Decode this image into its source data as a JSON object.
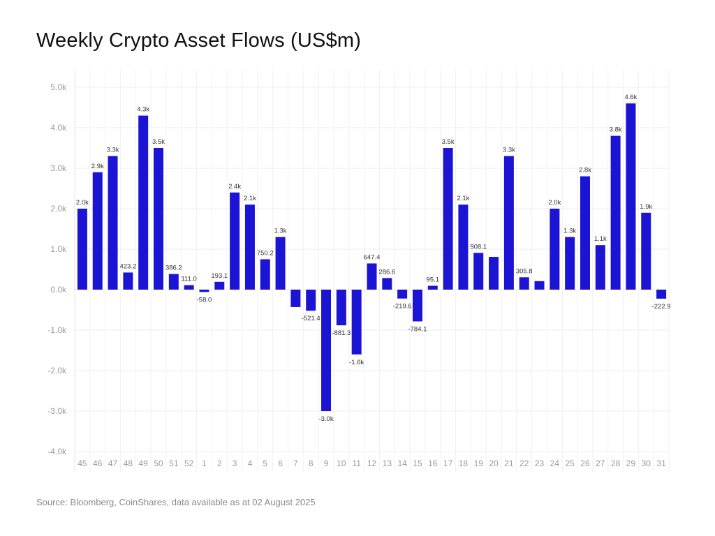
{
  "chart_data": {
    "type": "bar",
    "title": "Weekly Crypto Asset Flows (US$m)",
    "source": "Source: Bloomberg, CoinShares, data available as at 02 August 2025",
    "categories": [
      "45",
      "46",
      "47",
      "48",
      "49",
      "50",
      "51",
      "52",
      "1",
      "2",
      "3",
      "4",
      "5",
      "6",
      "7",
      "8",
      "9",
      "10",
      "11",
      "12",
      "13",
      "14",
      "15",
      "16",
      "17",
      "18",
      "19",
      "20",
      "21",
      "22",
      "23",
      "24",
      "25",
      "26",
      "27",
      "28",
      "29",
      "30",
      "31"
    ],
    "values": [
      2000,
      2900,
      3300,
      423.2,
      4300,
      3500,
      386.2,
      111.0,
      -58.0,
      193.1,
      2400,
      2100,
      750.2,
      1300,
      -430,
      -521.4,
      -3000,
      -881.3,
      -1600,
      647.4,
      286.6,
      -219.6,
      -784.1,
      95.1,
      3500,
      2100,
      908.1,
      810,
      3300,
      305.8,
      210,
      2000,
      1300,
      2800,
      1100,
      3800,
      4600,
      1900,
      -222.9
    ],
    "data_labels": [
      "2.0k",
      "2.9k",
      "3.3k",
      "423.2",
      "4.3k",
      "3.5k",
      "386.2",
      "111.0",
      "-58.0",
      "193.1",
      "2.4k",
      "2.1k",
      "750.2",
      "1.3k",
      "",
      "-521.4",
      "-3.0k",
      "-881.3",
      "-1.6k",
      "647.4",
      "286.6",
      "-219.6",
      "-784.1",
      "95.1",
      "3.5k",
      "2.1k",
      "908.1",
      "",
      "3.3k",
      "305.8",
      "",
      "2.0k",
      "1.3k",
      "2.8k",
      "1.1k",
      "3.8k",
      "4.6k",
      "1.9k",
      "-222.9"
    ],
    "yticks": [
      5000,
      4000,
      3000,
      2000,
      1000,
      0,
      -1000,
      -2000,
      -3000,
      -4000
    ],
    "ytick_labels": [
      "5.0k",
      "4.0k",
      "3.0k",
      "2.0k",
      "1.0k",
      "0.0k",
      "-1.0k",
      "-2.0k",
      "-3.0k",
      "-4.0k"
    ],
    "ylim": [
      -4000,
      5000
    ],
    "xlabel": "",
    "ylabel": "",
    "grid": true,
    "bar_color": "#1c14d4"
  }
}
